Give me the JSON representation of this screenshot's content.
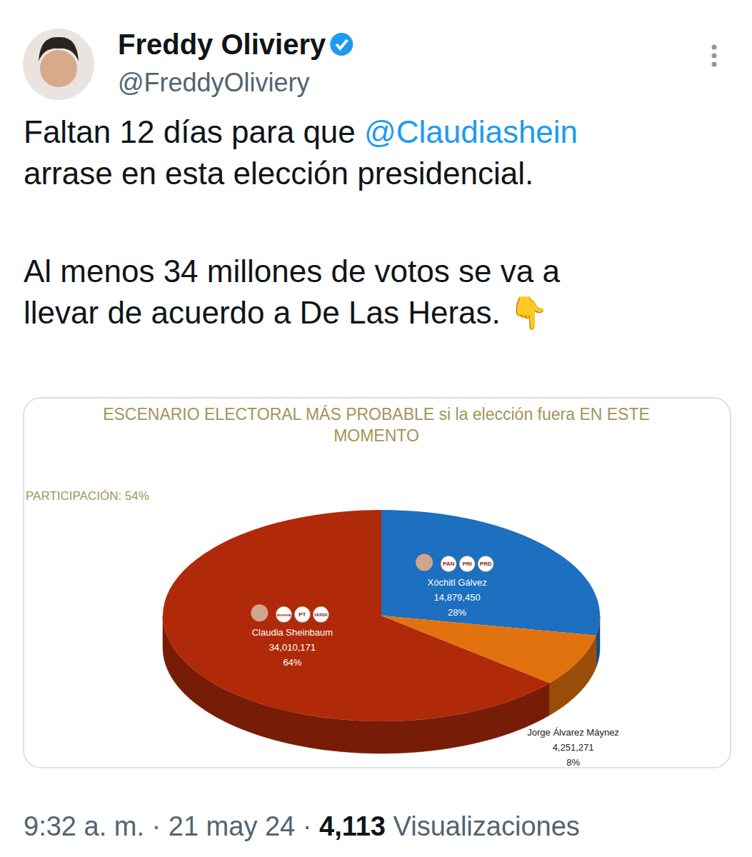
{
  "tweet": {
    "author": "Freddy Oliviery",
    "handle": "@FreddyOliviery",
    "paragraphs": [
      [
        "Faltan 12 días para que @Claudiashein",
        "arrase en esta elección presidencial."
      ],
      [
        "Al menos 34 millones de votos se va a",
        "llevar de acuerdo a De Las Heras. 👇"
      ]
    ]
  },
  "footer": {
    "parts": [
      "9:32 a. m.",
      "21 may 24"
    ],
    "separator": "·",
    "views": "4,113",
    "views_label": "Visualizaciones"
  },
  "chart_data": {
    "type": "pie",
    "title": "ESCENARIO ELECTORAL MÁS PROBABLE si la elección fuera EN ESTE MOMENTO",
    "annotations": [
      "PARTICIPACIÓN: 54%"
    ],
    "categories": [
      "Claudia Sheinbaum",
      "Xóchitl Gálvez",
      "Jorge Álvarez Máynez"
    ],
    "values": [
      64,
      28,
      8
    ],
    "value_labels": [
      "64%",
      "28%",
      "8%"
    ],
    "votes": [
      "34,010,171",
      "14,879,450",
      "4,251,271"
    ],
    "parties": [
      [
        "morena",
        "PT",
        "VERDE"
      ],
      [
        "PAN",
        "PRI",
        "PRD"
      ],
      null
    ],
    "colors": [
      "#b02a0a",
      "#1d6fbf",
      "#e2720e"
    ],
    "data_labels": true
  }
}
